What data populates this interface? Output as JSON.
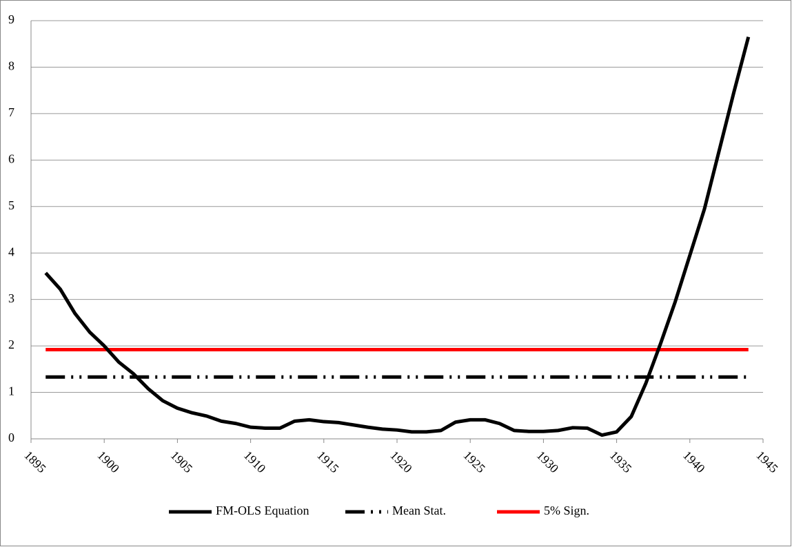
{
  "chart_data": {
    "type": "line",
    "x": [
      1896,
      1897,
      1898,
      1899,
      1900,
      1901,
      1902,
      1903,
      1904,
      1905,
      1906,
      1907,
      1908,
      1909,
      1910,
      1911,
      1912,
      1913,
      1914,
      1915,
      1916,
      1917,
      1918,
      1919,
      1920,
      1921,
      1922,
      1923,
      1924,
      1925,
      1926,
      1927,
      1928,
      1929,
      1930,
      1931,
      1932,
      1933,
      1934,
      1935,
      1936,
      1937,
      1938,
      1939,
      1940,
      1941,
      1942,
      1943,
      1944
    ],
    "series": [
      {
        "name": "FM-OLS Equation",
        "color": "#000000",
        "dash": "solid",
        "values": [
          3.57,
          3.22,
          2.7,
          2.3,
          2.0,
          1.65,
          1.4,
          1.08,
          0.82,
          0.66,
          0.56,
          0.49,
          0.38,
          0.33,
          0.25,
          0.23,
          0.23,
          0.38,
          0.41,
          0.37,
          0.35,
          0.3,
          0.25,
          0.21,
          0.19,
          0.15,
          0.15,
          0.18,
          0.36,
          0.41,
          0.41,
          0.33,
          0.18,
          0.16,
          0.16,
          0.18,
          0.24,
          0.23,
          0.08,
          0.15,
          0.48,
          1.2,
          2.05,
          2.95,
          3.95,
          4.95,
          6.2,
          7.45,
          8.65
        ]
      },
      {
        "name": "Mean Stat.",
        "color": "#000000",
        "dash": "dash-dot-dot",
        "values": [
          1.33,
          1.33,
          1.33,
          1.33,
          1.33,
          1.33,
          1.33,
          1.33,
          1.33,
          1.33,
          1.33,
          1.33,
          1.33,
          1.33,
          1.33,
          1.33,
          1.33,
          1.33,
          1.33,
          1.33,
          1.33,
          1.33,
          1.33,
          1.33,
          1.33,
          1.33,
          1.33,
          1.33,
          1.33,
          1.33,
          1.33,
          1.33,
          1.33,
          1.33,
          1.33,
          1.33,
          1.33,
          1.33,
          1.33,
          1.33,
          1.33,
          1.33,
          1.33,
          1.33,
          1.33,
          1.33,
          1.33,
          1.33,
          1.33
        ]
      },
      {
        "name": "5% Sign.",
        "color": "#ff0000",
        "dash": "solid",
        "values": [
          1.92,
          1.92,
          1.92,
          1.92,
          1.92,
          1.92,
          1.92,
          1.92,
          1.92,
          1.92,
          1.92,
          1.92,
          1.92,
          1.92,
          1.92,
          1.92,
          1.92,
          1.92,
          1.92,
          1.92,
          1.92,
          1.92,
          1.92,
          1.92,
          1.92,
          1.92,
          1.92,
          1.92,
          1.92,
          1.92,
          1.92,
          1.92,
          1.92,
          1.92,
          1.92,
          1.92,
          1.92,
          1.92,
          1.92,
          1.92,
          1.92,
          1.92,
          1.92,
          1.92,
          1.92,
          1.92,
          1.92,
          1.92,
          1.92
        ]
      }
    ],
    "xlim": [
      1895,
      1945
    ],
    "xticks": [
      1895,
      1900,
      1905,
      1910,
      1915,
      1920,
      1925,
      1930,
      1935,
      1940,
      1945
    ],
    "ylim": [
      0,
      9
    ],
    "yticks": [
      0,
      1,
      2,
      3,
      4,
      5,
      6,
      7,
      8,
      9
    ],
    "grid": true,
    "legend": "bottom"
  }
}
